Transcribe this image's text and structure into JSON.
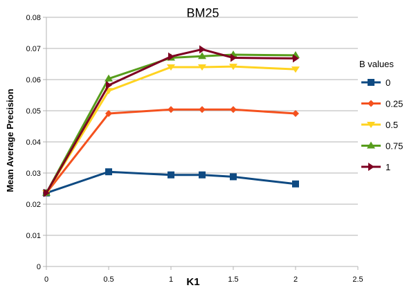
{
  "chart_data": {
    "type": "line",
    "title": "BM25",
    "xlabel": "K1",
    "ylabel": "Mean Average Precision",
    "xlim": [
      0,
      2.5
    ],
    "ylim": [
      0,
      0.08
    ],
    "x_ticks": [
      "0",
      "0.5",
      "1",
      "1.5",
      "2",
      "2.5"
    ],
    "y_ticks": [
      "0",
      "0.01",
      "0.02",
      "0.03",
      "0.04",
      "0.05",
      "0.06",
      "0.07",
      "0.08"
    ],
    "grid": "horizontal",
    "legend_title": "B values",
    "legend_position": "right",
    "x": [
      0,
      0.5,
      1,
      1.25,
      1.5,
      2
    ],
    "series": [
      {
        "name": "0",
        "color": "#0e4a82",
        "marker": "square",
        "values": [
          0.0236,
          0.0304,
          0.0294,
          0.0294,
          0.0288,
          0.0265
        ]
      },
      {
        "name": "0.25",
        "color": "#f4511e",
        "marker": "diamond",
        "values": [
          0.0236,
          0.0491,
          0.0504,
          0.0504,
          0.0504,
          0.0491
        ]
      },
      {
        "name": "0.5",
        "color": "#ffd320",
        "marker": "triangle-down",
        "values": [
          0.0236,
          0.0564,
          0.064,
          0.064,
          0.0642,
          0.0633
        ]
      },
      {
        "name": "0.75",
        "color": "#579d1c",
        "marker": "triangle-up",
        "values": [
          0.0236,
          0.0603,
          0.067,
          0.0675,
          0.068,
          0.0678
        ]
      },
      {
        "name": "1",
        "color": "#7e0021",
        "marker": "triangle-right",
        "values": [
          0.0236,
          0.0582,
          0.0674,
          0.0697,
          0.067,
          0.0668
        ]
      }
    ]
  }
}
